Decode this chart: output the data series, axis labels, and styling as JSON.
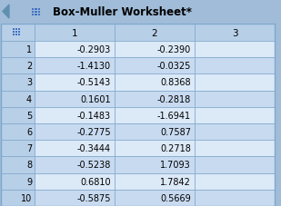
{
  "title": "Box-Muller Worksheet*",
  "col_headers": [
    "",
    "1",
    "2",
    "3"
  ],
  "row_headers": [
    "1",
    "2",
    "3",
    "4",
    "5",
    "6",
    "7",
    "8",
    "9",
    "10"
  ],
  "col1": [
    -0.2903,
    -1.413,
    -0.5143,
    0.1601,
    -0.1483,
    -0.2775,
    -0.3444,
    -0.5238,
    0.681,
    -0.5875
  ],
  "col2": [
    -0.239,
    -0.0325,
    0.8368,
    -0.2818,
    -1.6941,
    0.7587,
    0.2718,
    1.7093,
    1.7842,
    0.5669
  ],
  "title_bg": "#e8eff8",
  "header_bg": "#b8cfe8",
  "row_bg_light": "#dce9f7",
  "row_bg_medium": "#c8daf0",
  "row_header_bg": "#b8cfe8",
  "outer_bg": "#a0bcd8",
  "grid_color": "#7fa8cc",
  "title_color": "#000000",
  "text_color": "#000000",
  "icon_color": "#4472c4",
  "arrow_color": "#6090b0"
}
